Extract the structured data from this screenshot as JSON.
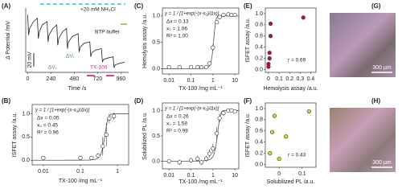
{
  "chart_data": [
    {
      "type": "line",
      "panel": "(A)",
      "xlabel": "Time /s",
      "ylabel": "Δ Potential /mV",
      "x": [
        0,
        10,
        20,
        60,
        100,
        110,
        120,
        150,
        200,
        210,
        220,
        260,
        300,
        310,
        320,
        360,
        400,
        410,
        420,
        460,
        520,
        530,
        540,
        580,
        640,
        650,
        660,
        700,
        760,
        770,
        780,
        820,
        880,
        890,
        900,
        940,
        1000
      ],
      "values": [
        0,
        -30,
        -20,
        -10,
        -5,
        -35,
        -25,
        -15,
        -10,
        -40,
        -30,
        -20,
        -15,
        -45,
        -35,
        -25,
        -20,
        -50,
        -40,
        -32,
        -28,
        -55,
        -48,
        -42,
        -40,
        -62,
        -56,
        -52,
        -50,
        -70,
        -66,
        -64,
        -62,
        -78,
        -74,
        -72,
        -70
      ],
      "color": "#222",
      "xlim": [
        -20,
        1040
      ],
      "ylim": [
        -85,
        10
      ],
      "xticks": [
        0,
        240,
        480,
        720,
        960
      ],
      "scale_bar": {
        "value": 20,
        "label": "20 mV"
      },
      "annotations": [
        "+20 mM NH₄Cl",
        "BTP buffer",
        "TX-100",
        "ΔV₀",
        "ΔV₁"
      ]
    },
    {
      "type": "scatter",
      "panel": "(B)",
      "xlabel": "TX-100 /mg mL⁻¹",
      "ylabel": "ISFET assay /a.u.",
      "x": [
        0.01,
        0.1,
        0.2,
        0.3,
        0.4,
        0.5,
        0.6,
        0.8
      ],
      "values": [
        0.05,
        0.05,
        0.05,
        0.1,
        0.3,
        0.55,
        0.9,
        0.95
      ],
      "errors": [
        0.03,
        0.03,
        0.03,
        0.05,
        0.2,
        0.25,
        0.1,
        0.08
      ],
      "color": "#222",
      "xscale": "log",
      "xlim": [
        0.005,
        2
      ],
      "ylim": [
        -0.1,
        1.2
      ],
      "xticks": [
        0.01,
        0.1,
        1
      ],
      "yticks": [
        {
          "value": 0,
          "label": "0.0"
        },
        {
          "value": 0.5,
          "label": "0.5"
        },
        {
          "value": 1,
          "label": "1.0"
        }
      ],
      "equation": "y = 1 / [1+exp(-(x-x₀)/Δx)]",
      "fit": {
        "dx": 0.05,
        "x0": 0.45
      },
      "annotations": [
        "Δx = 0.05",
        "x₀ = 0.45",
        "R² = 0.96"
      ]
    },
    {
      "type": "scatter",
      "panel": "(C)",
      "xlabel": "TX-100 /mg mL⁻¹",
      "ylabel": "Hemolysis assay /a.u.",
      "x": [
        0.01,
        0.03,
        0.1,
        0.2,
        0.3,
        0.5,
        0.7,
        1,
        1.5,
        2,
        3,
        5,
        7,
        10
      ],
      "values": [
        0.03,
        0.03,
        0.03,
        0.03,
        0.03,
        0.03,
        0.1,
        0.4,
        0.88,
        0.98,
        1.02,
        1.03,
        1.02,
        1.02
      ],
      "errors": [
        0.01,
        0.01,
        0.01,
        0.01,
        0.01,
        0.01,
        0.02,
        0.06,
        0.03,
        0.02,
        0.01,
        0.01,
        0.01,
        0.01
      ],
      "color": "#222",
      "xscale": "log",
      "xlim": [
        0.005,
        15
      ],
      "ylim": [
        -0.1,
        1.15
      ],
      "xticks": [
        0.01,
        0.1,
        1,
        10
      ],
      "yticks": [
        {
          "value": 0,
          "label": "0.0"
        },
        {
          "value": 0.5,
          "label": "0.5"
        },
        {
          "value": 1,
          "label": "1.0"
        }
      ],
      "equation": "y = 1 / [1+exp(-(x-x₀)/Δx)]",
      "fit": {
        "dx": 0.13,
        "x0": 1.06
      },
      "annotations": [
        "Δx = 0.13",
        "x₀ = 1.06",
        "R² = 1.00"
      ]
    },
    {
      "type": "scatter",
      "panel": "(D)",
      "xlabel": "TX-100 /mg mL⁻¹",
      "ylabel": "Solubilized PL /a.u.",
      "x": [
        0.01,
        0.03,
        0.1,
        0.2,
        0.3,
        0.5,
        0.7,
        1,
        1.5,
        2,
        3,
        5,
        7,
        10
      ],
      "values": [
        0.0,
        -0.02,
        0.02,
        0.05,
        -0.02,
        0.05,
        0.15,
        0.25,
        0.55,
        0.85,
        0.95,
        1.0,
        1.0,
        0.98
      ],
      "errors": [
        0.04,
        0.05,
        0.05,
        0.06,
        0.05,
        0.06,
        0.08,
        0.1,
        0.12,
        0.08,
        0.05,
        0.03,
        0.03,
        0.03
      ],
      "color": "#222",
      "xscale": "log",
      "xlim": [
        0.005,
        15
      ],
      "ylim": [
        -0.15,
        1.15
      ],
      "xticks": [
        0.01,
        0.1,
        1,
        10
      ],
      "yticks": [
        {
          "value": 0,
          "label": "0.0"
        },
        {
          "value": 0.5,
          "label": "0.5"
        },
        {
          "value": 1,
          "label": "1.0"
        }
      ],
      "equation": "y = 1 / [1+exp(-(x-x₀)/Δx)]",
      "fit": {
        "dx": 0.26,
        "x0": 1.58
      },
      "annotations": [
        "Δx = 0.26",
        "x₀ = 1.58",
        "R² = 0.99"
      ]
    },
    {
      "type": "scatter",
      "panel": "(E)",
      "xlabel": "Hemolysis assay /a.u.",
      "ylabel": "ISFET assay /a.u.",
      "x": [
        0.0,
        0.0,
        0.01,
        0.01,
        0.02,
        0.02,
        0.33
      ],
      "values": [
        0.05,
        0.1,
        0.2,
        0.3,
        0.6,
        0.82,
        0.93
      ],
      "color": "#b0124f",
      "xlim": [
        -0.03,
        0.45
      ],
      "ylim": [
        -0.05,
        1.1
      ],
      "xticks": [
        0,
        0.1,
        0.2,
        0.3,
        0.4
      ],
      "yticks": [
        {
          "value": 0,
          "label": "0.0"
        },
        0.2,
        0.4,
        0.6,
        0.8,
        {
          "value": 1,
          "label": "1.0"
        }
      ],
      "annotations": [
        "r = 0.69"
      ]
    },
    {
      "type": "scatter",
      "panel": "(F)",
      "xlabel": "Solubilized PL /a.u.",
      "ylabel": "ISFET assay /a.u.",
      "x": [
        -0.04,
        -0.03,
        -0.02,
        0.0,
        0.03,
        0.13
      ],
      "values": [
        0.2,
        0.58,
        0.87,
        0.1,
        0.5,
        0.95
      ],
      "color": "#d6d630",
      "xlim": [
        -0.06,
        0.16
      ],
      "ylim": [
        -0.05,
        1.1
      ],
      "xticks": [
        0,
        0.1
      ],
      "yticks": [
        {
          "value": 0,
          "label": "0.0"
        },
        0.2,
        0.4,
        0.6,
        0.8,
        {
          "value": 1,
          "label": "1.0"
        }
      ],
      "annotations": [
        "r = 0.43"
      ]
    }
  ],
  "images": [
    {
      "panel": "(G)",
      "scale_bar": "300 µm"
    },
    {
      "panel": "(H)",
      "scale_bar": "300 µm"
    }
  ]
}
